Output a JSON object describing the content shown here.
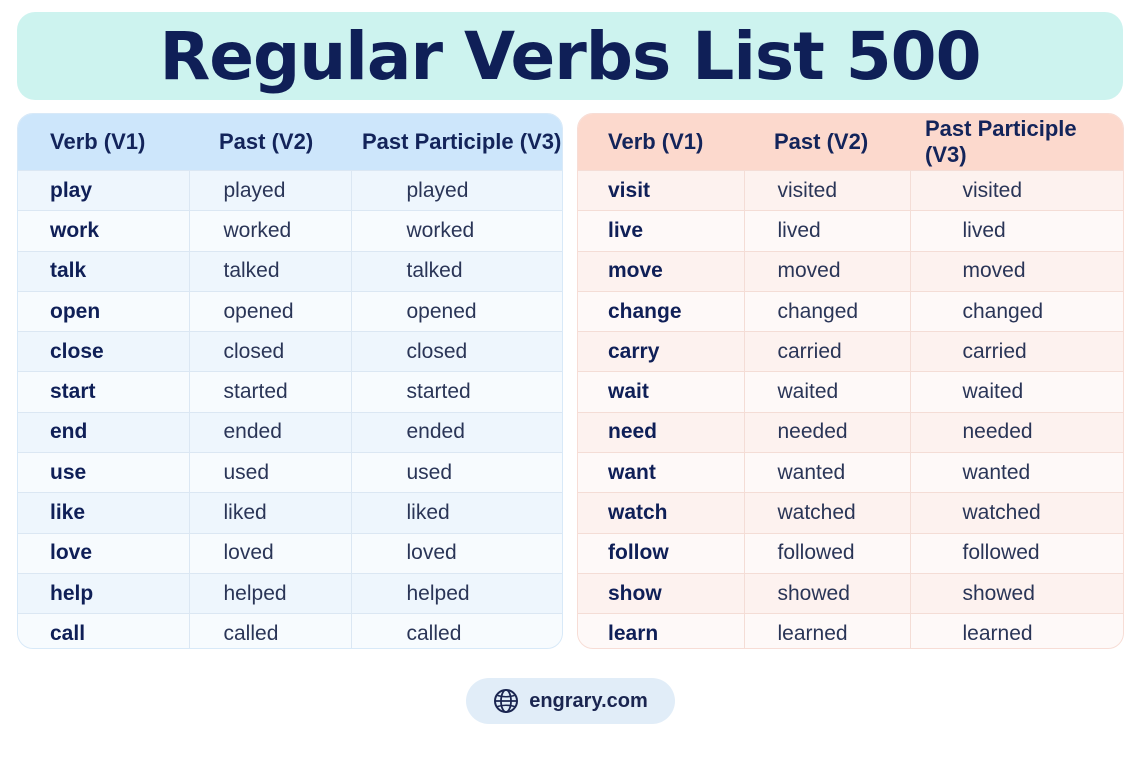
{
  "title": "Regular Verbs List 500",
  "headers": [
    "Verb (V1)",
    "Past (V2)",
    "Past Participle (V3)"
  ],
  "left_table": [
    [
      "play",
      "played",
      "played"
    ],
    [
      "work",
      "worked",
      "worked"
    ],
    [
      "talk",
      "talked",
      "talked"
    ],
    [
      "open",
      "opened",
      "opened"
    ],
    [
      "close",
      "closed",
      "closed"
    ],
    [
      "start",
      "started",
      "started"
    ],
    [
      "end",
      "ended",
      "ended"
    ],
    [
      "use",
      "used",
      "used"
    ],
    [
      "like",
      "liked",
      "liked"
    ],
    [
      "love",
      "loved",
      "loved"
    ],
    [
      "help",
      "helped",
      "helped"
    ],
    [
      "call",
      "called",
      "called"
    ]
  ],
  "right_table": [
    [
      "visit",
      "visited",
      "visited"
    ],
    [
      "live",
      "lived",
      "lived"
    ],
    [
      "move",
      "moved",
      "moved"
    ],
    [
      "change",
      "changed",
      "changed"
    ],
    [
      "carry",
      "carried",
      "carried"
    ],
    [
      "wait",
      "waited",
      "waited"
    ],
    [
      "need",
      "needed",
      "needed"
    ],
    [
      "want",
      "wanted",
      "wanted"
    ],
    [
      "watch",
      "watched",
      "watched"
    ],
    [
      "follow",
      "followed",
      "followed"
    ],
    [
      "show",
      "showed",
      "showed"
    ],
    [
      "learn",
      "learned",
      "learned"
    ]
  ],
  "footer": {
    "site": "engrary.com",
    "icon": "globe-icon"
  },
  "colors": {
    "title_bg": "#cdf3ef",
    "title_text": "#0f1f57",
    "left_header_bg": "#cde6fb",
    "right_header_bg": "#fcd9cd"
  }
}
